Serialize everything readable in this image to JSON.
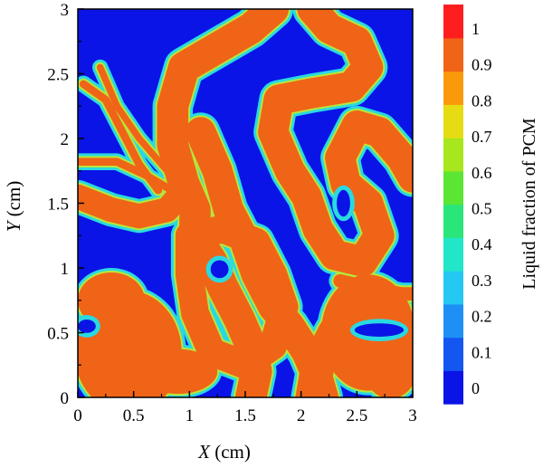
{
  "chart_data": {
    "type": "heatmap",
    "title": "",
    "xlabel": {
      "var": "X",
      "unit": " (cm)"
    },
    "ylabel": {
      "var": "Y",
      "unit": " (cm)"
    },
    "xlim": [
      0,
      3
    ],
    "ylim": [
      0,
      3
    ],
    "x_ticks": [
      "0",
      "0.5",
      "1",
      "1.5",
      "2",
      "2.5",
      "3"
    ],
    "y_ticks": [
      "0",
      "0.5",
      "1",
      "1.5",
      "2",
      "2.5",
      "3"
    ],
    "colorbar": {
      "label": "Liquid fraction of PCM",
      "ticks": [
        "0",
        "0.1",
        "0.2",
        "0.3",
        "0.4",
        "0.5",
        "0.6",
        "0.7",
        "0.8",
        "0.9",
        "1"
      ],
      "colors": [
        "#0a14e6",
        "#1456f0",
        "#1e90f5",
        "#25c8f2",
        "#22e6c8",
        "#2ae67a",
        "#5ae632",
        "#a8e61e",
        "#e6dc14",
        "#fa9a0a",
        "#f06418",
        "#ff1e1e"
      ]
    },
    "colors": {
      "solid": "#0a14e6",
      "liquid": "#f06418",
      "edge_outer": "#2ad9e0",
      "edge_inner": "#b8e63a"
    },
    "liquid_regions": [
      {
        "points": [
          [
            1.75,
            3.0
          ],
          [
            1.55,
            2.85
          ],
          [
            1.25,
            2.7
          ],
          [
            0.95,
            2.55
          ],
          [
            0.85,
            2.25
          ],
          [
            0.85,
            1.95
          ],
          [
            0.95,
            1.65
          ],
          [
            1.05,
            1.45
          ],
          [
            1.05,
            1.25
          ],
          [
            1.2,
            1.05
          ],
          [
            1.3,
            0.85
          ],
          [
            1.45,
            0.6
          ],
          [
            1.55,
            0.4
          ],
          [
            1.6,
            0.2
          ],
          [
            1.55,
            0.0
          ]
        ],
        "width": 0.28
      },
      {
        "points": [
          [
            1.1,
            2.05
          ],
          [
            1.25,
            1.75
          ],
          [
            1.35,
            1.45
          ],
          [
            1.5,
            1.2
          ],
          [
            1.6,
            0.95
          ],
          [
            1.75,
            0.7
          ],
          [
            1.9,
            0.55
          ],
          [
            2.05,
            0.35
          ],
          [
            2.15,
            0.15
          ],
          [
            2.2,
            0.0
          ]
        ],
        "width": 0.27
      },
      {
        "points": [
          [
            1.0,
            1.25
          ],
          [
            1.3,
            1.3
          ],
          [
            1.6,
            1.2
          ],
          [
            1.75,
            0.95
          ],
          [
            1.85,
            0.7
          ],
          [
            1.75,
            0.4
          ],
          [
            1.5,
            0.25
          ],
          [
            1.2,
            0.35
          ],
          [
            1.05,
            0.65
          ],
          [
            1.0,
            0.95
          ],
          [
            1.0,
            1.25
          ]
        ],
        "width": 0.25
      },
      {
        "points": [
          [
            0.0,
            1.55
          ],
          [
            0.3,
            1.45
          ],
          [
            0.55,
            1.4
          ],
          [
            0.8,
            1.45
          ],
          [
            0.95,
            1.6
          ]
        ],
        "width": 0.22
      },
      {
        "points": [
          [
            0.0,
            1.82
          ],
          [
            0.35,
            1.82
          ],
          [
            0.6,
            1.72
          ],
          [
            0.8,
            1.62
          ]
        ],
        "width": 0.07
      },
      {
        "points": [
          [
            0.05,
            2.42
          ],
          [
            0.25,
            2.3
          ],
          [
            0.4,
            2.05
          ],
          [
            0.55,
            1.8
          ],
          [
            0.72,
            1.6
          ]
        ],
        "width": 0.07
      },
      {
        "points": [
          [
            0.2,
            2.55
          ],
          [
            0.35,
            2.25
          ],
          [
            0.55,
            2.0
          ],
          [
            0.8,
            1.75
          ]
        ],
        "width": 0.06
      },
      {
        "points": [
          [
            2.1,
            3.0
          ],
          [
            2.25,
            2.85
          ],
          [
            2.5,
            2.75
          ],
          [
            2.6,
            2.55
          ],
          [
            2.45,
            2.4
          ],
          [
            2.1,
            2.35
          ],
          [
            1.8,
            2.3
          ],
          [
            1.75,
            2.05
          ],
          [
            1.9,
            1.75
          ],
          [
            2.05,
            1.55
          ],
          [
            2.15,
            1.3
          ],
          [
            2.3,
            1.1
          ],
          [
            2.55,
            1.05
          ],
          [
            2.7,
            1.25
          ],
          [
            2.6,
            1.5
          ],
          [
            2.4,
            1.65
          ],
          [
            2.35,
            1.85
          ],
          [
            2.5,
            2.1
          ],
          [
            2.7,
            2.05
          ],
          [
            2.9,
            1.85
          ],
          [
            3.0,
            1.7
          ]
        ],
        "width": 0.27
      },
      {
        "points": [
          [
            2.1,
            0.0
          ],
          [
            2.15,
            0.25
          ],
          [
            2.3,
            0.5
          ],
          [
            2.6,
            0.65
          ],
          [
            2.9,
            0.55
          ],
          [
            3.0,
            0.5
          ]
        ],
        "width": 0.3
      },
      {
        "points": [
          [
            2.35,
            0.9
          ],
          [
            2.6,
            0.85
          ],
          [
            2.9,
            0.8
          ],
          [
            3.0,
            0.8
          ]
        ],
        "width": 0.12
      }
    ],
    "liquid_blobs": [
      {
        "center": [
          0.45,
          0.35
        ],
        "rx": 0.48,
        "ry": 0.55
      },
      {
        "center": [
          0.3,
          0.75
        ],
        "rx": 0.3,
        "ry": 0.25
      },
      {
        "center": [
          0.9,
          0.2
        ],
        "rx": 0.35,
        "ry": 0.2
      },
      {
        "center": [
          2.6,
          0.5
        ],
        "rx": 0.42,
        "ry": 0.52
      },
      {
        "center": [
          2.8,
          0.25
        ],
        "rx": 0.25,
        "ry": 0.3
      }
    ],
    "solid_pockets": [
      {
        "center": [
          1.27,
          0.99
        ],
        "rx": 0.08,
        "ry": 0.08
      },
      {
        "center": [
          0.08,
          0.55
        ],
        "rx": 0.08,
        "ry": 0.06
      },
      {
        "center": [
          2.7,
          0.52
        ],
        "rx": 0.22,
        "ry": 0.06
      },
      {
        "center": [
          2.38,
          1.5
        ],
        "rx": 0.06,
        "ry": 0.12
      }
    ]
  }
}
